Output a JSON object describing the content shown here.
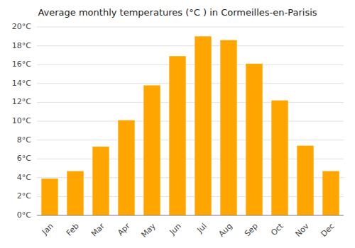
{
  "chart_data": {
    "type": "bar",
    "title": "Average monthly temperatures (°C ) in Cormeilles-en-Parisis",
    "categories": [
      "Jan",
      "Feb",
      "Mar",
      "Apr",
      "May",
      "Jun",
      "Jul",
      "Aug",
      "Sep",
      "Oct",
      "Nov",
      "Dec"
    ],
    "values": [
      3.9,
      4.7,
      7.3,
      10.1,
      13.8,
      16.9,
      19.0,
      18.6,
      16.1,
      12.2,
      7.4,
      4.7
    ],
    "color": "#FFA500",
    "ylim": [
      0,
      20
    ],
    "yticks": [
      {
        "value": 0,
        "label": "0°C"
      },
      {
        "value": 2,
        "label": "2°C"
      },
      {
        "value": 4,
        "label": "4°C"
      },
      {
        "value": 6,
        "label": "6°C"
      },
      {
        "value": 8,
        "label": "8°C"
      },
      {
        "value": 10,
        "label": "10°C"
      },
      {
        "value": 12,
        "label": "12°C"
      },
      {
        "value": 14,
        "label": "14°C"
      },
      {
        "value": 16,
        "label": "16°C"
      },
      {
        "value": 18,
        "label": "18°C"
      },
      {
        "value": 20,
        "label": "20°C"
      }
    ],
    "grid": true
  }
}
